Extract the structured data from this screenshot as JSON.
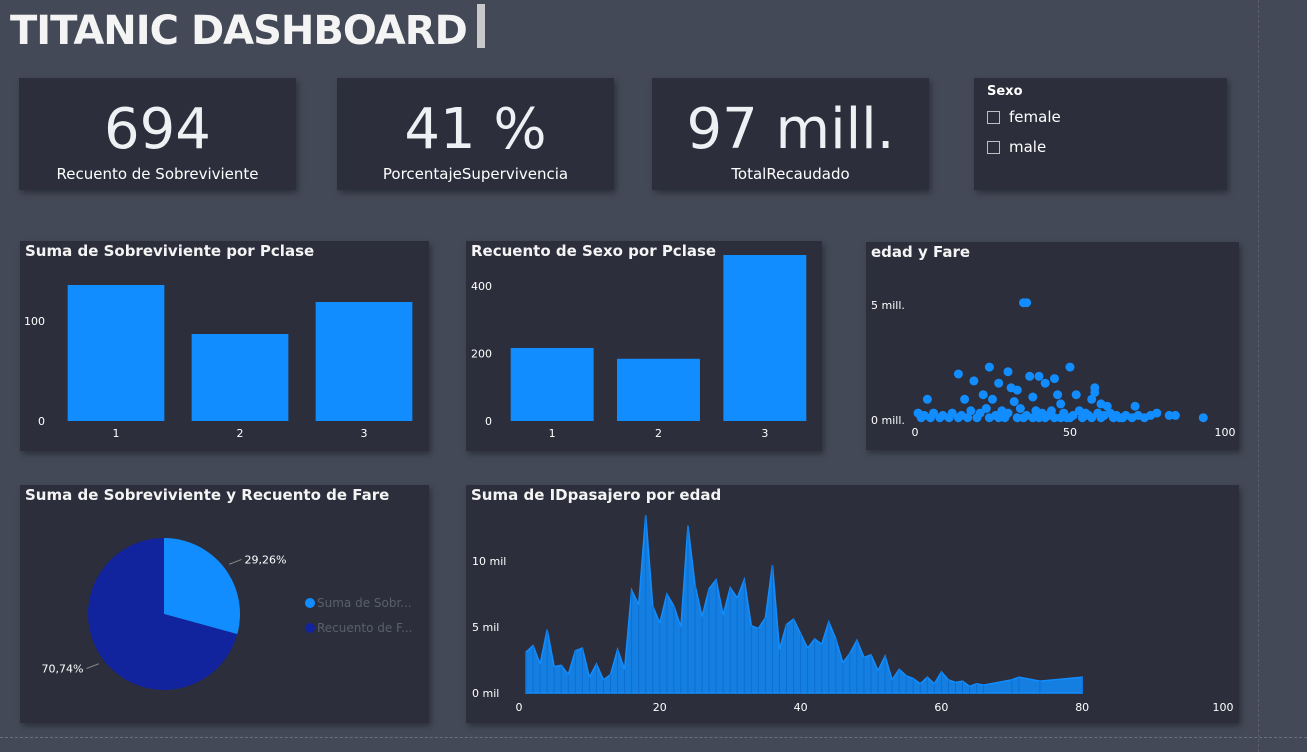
{
  "header": {
    "title": "TITANIC DASHBOARD"
  },
  "kpis": [
    {
      "value": "694",
      "label": "Recuento de Sobreviviente"
    },
    {
      "value": "41 %",
      "label": "PorcentajeSupervivencia"
    },
    {
      "value": "97 mill.",
      "label": "TotalRecaudado"
    }
  ],
  "slicer": {
    "title": "Sexo",
    "options": [
      {
        "label": "female",
        "checked": false
      },
      {
        "label": "male",
        "checked": false
      }
    ]
  },
  "colors": {
    "bar": "#118dff",
    "dark_series": "#12239e",
    "card": "#2c2e3b",
    "background": "#434957"
  },
  "chart_data": [
    {
      "type": "bar",
      "title": "Suma de Sobreviviente por Pclase",
      "categories": [
        "1",
        "2",
        "3"
      ],
      "values": [
        136,
        87,
        119
      ],
      "ylim": [
        0,
        140
      ],
      "yticks": [
        0,
        100
      ]
    },
    {
      "type": "bar",
      "title": "Recuento de Sexo por Pclase",
      "categories": [
        "1",
        "2",
        "3"
      ],
      "values": [
        216,
        184,
        491
      ],
      "ylim": [
        0,
        420
      ],
      "yticks": [
        0,
        200,
        400
      ]
    },
    {
      "type": "scatter",
      "title": "edad y Fare",
      "xlim": [
        0,
        100
      ],
      "ylim": [
        0,
        6
      ],
      "xticks": [
        0,
        50,
        100
      ],
      "yticks": [
        {
          "value": 0,
          "label": "0 mill."
        },
        {
          "value": 5,
          "label": "5 mill."
        }
      ],
      "points": [
        [
          35,
          5.1
        ],
        [
          36,
          5.1
        ],
        [
          14,
          2.0
        ],
        [
          24,
          2.3
        ],
        [
          30,
          2.1
        ],
        [
          50,
          2.3
        ],
        [
          45,
          1.8
        ],
        [
          40,
          1.9
        ],
        [
          19,
          1.7
        ],
        [
          27,
          1.6
        ],
        [
          31,
          1.4
        ],
        [
          37,
          1.9
        ],
        [
          42,
          1.6
        ],
        [
          58,
          1.4
        ],
        [
          58,
          1.2
        ],
        [
          33,
          1.3
        ],
        [
          4,
          0.9
        ],
        [
          16,
          0.9
        ],
        [
          22,
          1.1
        ],
        [
          25,
          0.9
        ],
        [
          32,
          0.8
        ],
        [
          38,
          1.0
        ],
        [
          46,
          1.1
        ],
        [
          47,
          0.7
        ],
        [
          52,
          1.1
        ],
        [
          57,
          0.9
        ],
        [
          60,
          0.7
        ],
        [
          62,
          0.6
        ],
        [
          71,
          0.6
        ],
        [
          78,
          0.3
        ],
        [
          82,
          0.2
        ],
        [
          84,
          0.2
        ],
        [
          93,
          0.1
        ],
        [
          1,
          0.3
        ],
        [
          3,
          0.2
        ],
        [
          6,
          0.3
        ],
        [
          9,
          0.2
        ],
        [
          12,
          0.3
        ],
        [
          15,
          0.2
        ],
        [
          18,
          0.4
        ],
        [
          21,
          0.3
        ],
        [
          23,
          0.5
        ],
        [
          26,
          0.2
        ],
        [
          28,
          0.4
        ],
        [
          30,
          0.3
        ],
        [
          34,
          0.5
        ],
        [
          36,
          0.2
        ],
        [
          39,
          0.4
        ],
        [
          41,
          0.3
        ],
        [
          43,
          0.2
        ],
        [
          44,
          0.4
        ],
        [
          48,
          0.3
        ],
        [
          51,
          0.2
        ],
        [
          53,
          0.4
        ],
        [
          55,
          0.3
        ],
        [
          56,
          0.2
        ],
        [
          59,
          0.3
        ],
        [
          61,
          0.2
        ],
        [
          63,
          0.3
        ],
        [
          65,
          0.2
        ],
        [
          66,
          0.1
        ],
        [
          68,
          0.2
        ],
        [
          70,
          0.1
        ],
        [
          72,
          0.2
        ],
        [
          74,
          0.1
        ],
        [
          76,
          0.2
        ],
        [
          2,
          0.1
        ],
        [
          5,
          0.1
        ],
        [
          8,
          0.1
        ],
        [
          11,
          0.1
        ],
        [
          14,
          0.1
        ],
        [
          17,
          0.1
        ],
        [
          20,
          0.1
        ],
        [
          24,
          0.1
        ],
        [
          27,
          0.1
        ],
        [
          29,
          0.1
        ],
        [
          33,
          0.1
        ],
        [
          35,
          0.1
        ],
        [
          38,
          0.1
        ],
        [
          40,
          0.1
        ],
        [
          42,
          0.1
        ],
        [
          45,
          0.1
        ],
        [
          47,
          0.1
        ],
        [
          49,
          0.1
        ],
        [
          50,
          0.1
        ],
        [
          54,
          0.1
        ],
        [
          57,
          0.1
        ],
        [
          60,
          0.1
        ],
        [
          64,
          0.1
        ],
        [
          67,
          0.1
        ]
      ]
    },
    {
      "type": "pie",
      "title": "Suma de Sobreviviente y Recuento de Fare",
      "slices": [
        {
          "name": "Suma de Sobr...",
          "value": 29.26,
          "label": "29,26%",
          "color": "#118dff"
        },
        {
          "name": "Recuento de F...",
          "value": 70.74,
          "label": "70,74%",
          "color": "#12239e"
        }
      ]
    },
    {
      "type": "area",
      "title": "Suma de IDpasajero por edad",
      "xlim": [
        0,
        100
      ],
      "ylim": [
        0,
        13500
      ],
      "xticks": [
        0,
        20,
        40,
        60,
        80,
        100
      ],
      "yticks": [
        {
          "value": 0,
          "label": "0 mil"
        },
        {
          "value": 5000,
          "label": "5 mil"
        },
        {
          "value": 10000,
          "label": "10 mil"
        }
      ],
      "x": [
        1,
        2,
        3,
        4,
        5,
        6,
        7,
        8,
        9,
        10,
        11,
        12,
        13,
        14,
        15,
        16,
        17,
        18,
        19,
        20,
        21,
        22,
        23,
        24,
        25,
        26,
        27,
        28,
        29,
        30,
        31,
        32,
        33,
        34,
        35,
        36,
        37,
        38,
        39,
        40,
        41,
        42,
        43,
        44,
        45,
        46,
        47,
        48,
        49,
        50,
        51,
        52,
        53,
        54,
        55,
        56,
        57,
        58,
        59,
        60,
        61,
        62,
        63,
        64,
        65,
        66,
        70,
        71,
        74,
        80
      ],
      "y": [
        3100,
        3600,
        2200,
        4800,
        2000,
        2100,
        1400,
        3200,
        3400,
        1200,
        2200,
        1000,
        1400,
        3300,
        1800,
        7800,
        6700,
        13500,
        6600,
        5300,
        7500,
        6600,
        5000,
        12700,
        8200,
        5800,
        7900,
        8600,
        5900,
        8000,
        7200,
        8600,
        5100,
        4900,
        5700,
        9700,
        3300,
        5200,
        5600,
        4500,
        3400,
        4100,
        3700,
        5400,
        4100,
        2300,
        3000,
        4000,
        2700,
        2900,
        1700,
        2800,
        1000,
        1800,
        1300,
        1100,
        700,
        1200,
        700,
        1600,
        1000,
        800,
        900,
        500,
        700,
        600,
        1000,
        1200,
        900,
        1200
      ]
    }
  ]
}
